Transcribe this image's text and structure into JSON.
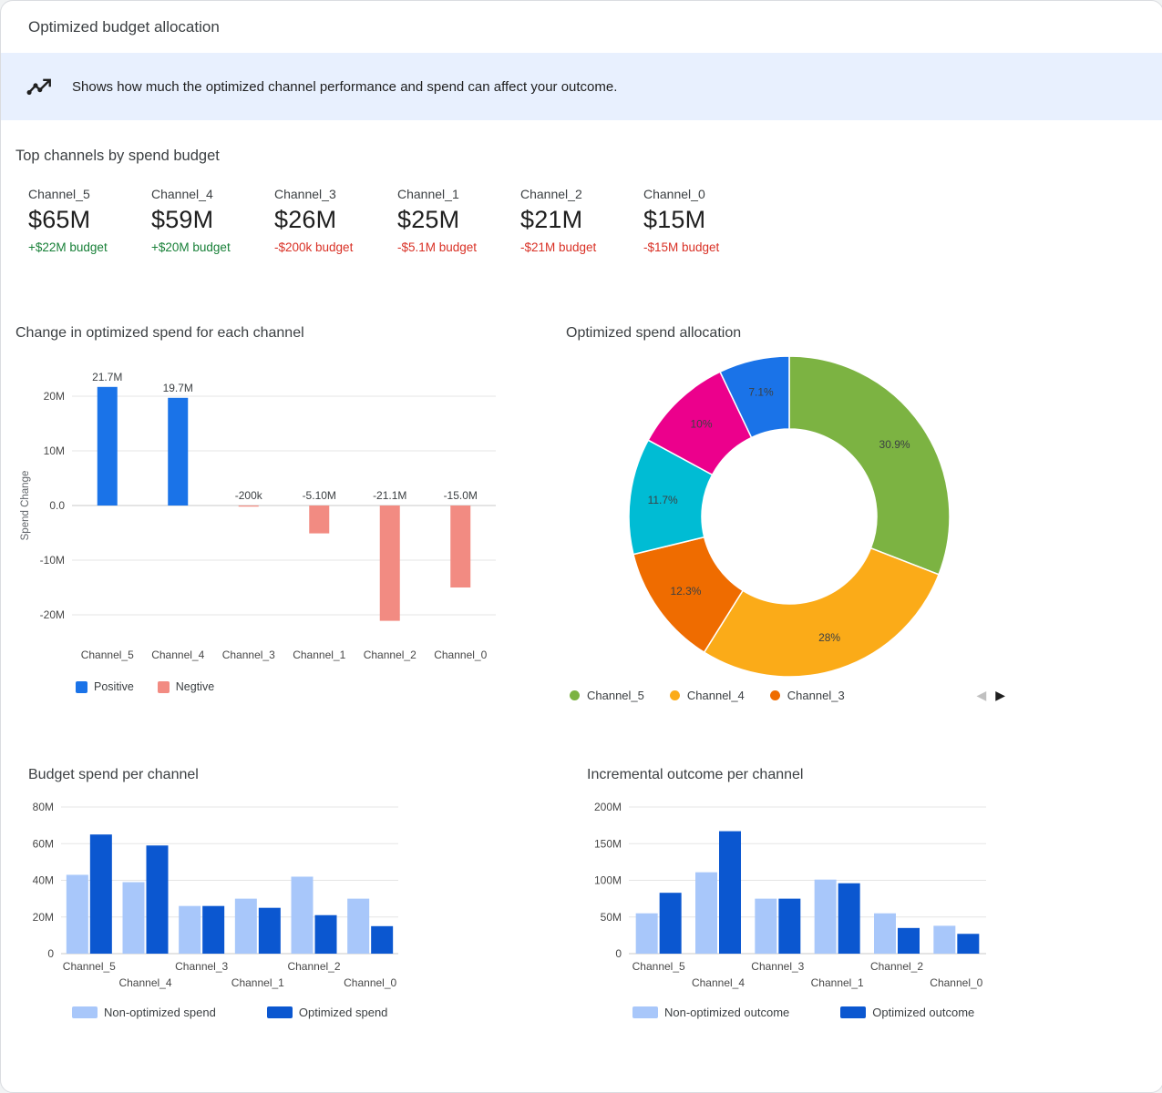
{
  "header": {
    "title": "Optimized budget allocation"
  },
  "banner": {
    "icon": "insights-icon",
    "text": "Shows how much the optimized channel performance and spend can affect your outcome."
  },
  "top_channels": {
    "heading": "Top channels by spend budget",
    "cards": [
      {
        "name": "Channel_5",
        "value": "$65M",
        "delta": "+$22M budget"
      },
      {
        "name": "Channel_4",
        "value": "$59M",
        "delta": "+$20M budget"
      },
      {
        "name": "Channel_3",
        "value": "$26M",
        "delta": "-$200k budget"
      },
      {
        "name": "Channel_1",
        "value": "$25M",
        "delta": "-$5.1M budget"
      },
      {
        "name": "Channel_2",
        "value": "$21M",
        "delta": "-$21M budget"
      },
      {
        "name": "Channel_0",
        "value": "$15M",
        "delta": "-$15M budget"
      }
    ]
  },
  "colors": {
    "positive_text": "#188038",
    "negative_text": "#d93025",
    "banner_bg": "#e8f0fe",
    "positive_bar": "#1a73e8",
    "negative_bar": "#f28b82",
    "non_optimized_bar": "#a8c7fa",
    "optimized_bar": "#0b57d0"
  },
  "chart_data": [
    {
      "type": "bar",
      "title": "Change in optimized spend for each channel",
      "ylabel": "Spend Change",
      "categories": [
        "Channel_5",
        "Channel_4",
        "Channel_3",
        "Channel_1",
        "Channel_2",
        "Channel_0"
      ],
      "values": [
        21.7,
        19.7,
        -0.2,
        -5.1,
        -21.1,
        -15.0
      ],
      "value_labels": [
        "21.7M",
        "19.7M",
        "-200k",
        "-5.10M",
        "-21.1M",
        "-15.0M"
      ],
      "ylim": [
        -25,
        25
      ],
      "yticks": [
        20,
        10,
        0,
        -10,
        -20
      ],
      "ytick_labels": [
        "20M",
        "10M",
        "0.0",
        "-10M",
        "-20M"
      ],
      "grid": true,
      "colors": {
        "positive": "#1a73e8",
        "negative": "#f28b82"
      },
      "legend_position": "bottom-left",
      "legend": [
        {
          "label": "Positive",
          "color": "#1a73e8"
        },
        {
          "label": "Negtive",
          "color": "#f28b82"
        }
      ]
    },
    {
      "type": "pie",
      "title": "Optimized spend allocation",
      "donut": true,
      "slices": [
        {
          "percent": "30.9%",
          "value": 30.9,
          "color": "#7cb342"
        },
        {
          "percent": "28%",
          "value": 28,
          "color": "#fbab18"
        },
        {
          "percent": "12.3%",
          "value": 12.3,
          "color": "#ef6c00"
        },
        {
          "percent": "11.7%",
          "value": 11.7,
          "color": "#00bcd4"
        },
        {
          "percent": "10%",
          "value": 10,
          "color": "#ec008c"
        },
        {
          "percent": "7.1%",
          "value": 7.1,
          "color": "#1a73e8"
        }
      ],
      "legend_position": "bottom",
      "legend": [
        {
          "label": "Channel_5",
          "color": "#7cb342"
        },
        {
          "label": "Channel_4",
          "color": "#fbab18"
        },
        {
          "label": "Channel_3",
          "color": "#ef6c00"
        }
      ],
      "pagination": {
        "prev_icon": "◀",
        "next_icon": "▶"
      }
    },
    {
      "type": "bar",
      "title": "Budget spend per channel",
      "categories": [
        "Channel_5",
        "Channel_4",
        "Channel_3",
        "Channel_1",
        "Channel_2",
        "Channel_0"
      ],
      "series": [
        {
          "name": "Non-optimized spend",
          "color": "#a8c7fa",
          "values": [
            43,
            39,
            26,
            30,
            42,
            30
          ]
        },
        {
          "name": "Optimized spend",
          "color": "#0b57d0",
          "values": [
            65,
            59,
            26,
            25,
            21,
            15
          ]
        }
      ],
      "ylim": [
        0,
        80
      ],
      "yticks": [
        0,
        20,
        40,
        60,
        80
      ],
      "ytick_labels": [
        "0",
        "20M",
        "40M",
        "60M",
        "80M"
      ],
      "grid": true,
      "legend_position": "bottom-left"
    },
    {
      "type": "bar",
      "title": "Incremental outcome per channel",
      "categories": [
        "Channel_5",
        "Channel_4",
        "Channel_3",
        "Channel_1",
        "Channel_2",
        "Channel_0"
      ],
      "series": [
        {
          "name": "Non-optimized outcome",
          "color": "#a8c7fa",
          "values": [
            55,
            111,
            75,
            101,
            55,
            38
          ]
        },
        {
          "name": "Optimized outcome",
          "color": "#0b57d0",
          "values": [
            83,
            167,
            75,
            96,
            35,
            27
          ]
        }
      ],
      "ylim": [
        0,
        200
      ],
      "yticks": [
        0,
        50,
        100,
        150,
        200
      ],
      "ytick_labels": [
        "0",
        "50M",
        "100M",
        "150M",
        "200M"
      ],
      "grid": true,
      "legend_position": "bottom-left"
    }
  ]
}
